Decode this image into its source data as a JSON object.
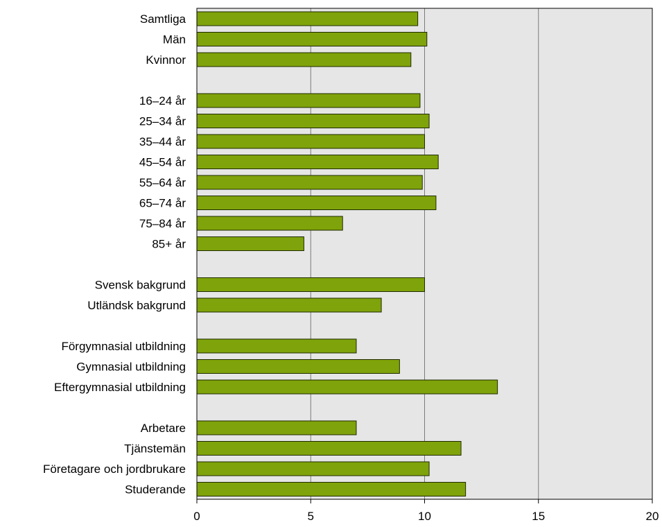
{
  "chart_data": {
    "type": "bar",
    "orientation": "horizontal",
    "title": "",
    "xlabel": "",
    "ylabel": "",
    "xlim": [
      0,
      20
    ],
    "xticks": [
      0,
      5,
      10,
      15,
      20
    ],
    "grid": "vertical",
    "legend": "none",
    "colors": {
      "bar": "#7fa30a",
      "bar_edge": "#1f2a00",
      "plot_bg": "#e6e6e6",
      "grid": "#7a7a7a"
    },
    "categories": [
      "Samtliga",
      "Män",
      "Kvinnor",
      "",
      "16–24 år",
      "25–34 år",
      "35–44 år",
      "45–54 år",
      "55–64 år",
      "65–74 år",
      "75–84 år",
      "85+ år",
      "",
      "Svensk bakgrund",
      "Utländsk bakgrund",
      "",
      "Förgymnasial utbildning",
      "Gymnasial utbildning",
      "Eftergymnasial utbildning",
      "",
      "Arbetare",
      "Tjänstemän",
      "Företagare och jordbrukare",
      "Studerande"
    ],
    "values": [
      9.7,
      10.1,
      9.4,
      null,
      9.8,
      10.2,
      10.0,
      10.6,
      9.9,
      10.5,
      6.4,
      4.7,
      null,
      10.0,
      8.1,
      null,
      7.0,
      8.9,
      13.2,
      null,
      7.0,
      11.6,
      10.2,
      11.8
    ]
  }
}
